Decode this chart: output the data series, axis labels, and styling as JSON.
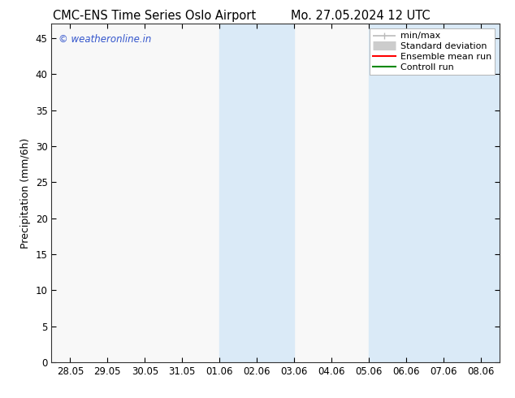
{
  "title_left": "CMC-ENS Time Series Oslo Airport",
  "title_right": "Mo. 27.05.2024 12 UTC",
  "ylabel": "Precipitation (mm/6h)",
  "ylim": [
    0,
    47
  ],
  "yticks": [
    0,
    5,
    10,
    15,
    20,
    25,
    30,
    35,
    40,
    45
  ],
  "xtick_labels": [
    "28.05",
    "29.05",
    "30.05",
    "31.05",
    "01.06",
    "02.06",
    "03.06",
    "04.06",
    "05.06",
    "06.06",
    "07.06",
    "08.06"
  ],
  "xtick_positions": [
    0,
    1,
    2,
    3,
    4,
    5,
    6,
    7,
    8,
    9,
    10,
    11
  ],
  "xlim": [
    -0.5,
    11.5
  ],
  "shaded_bands": [
    {
      "xmin": 4.0,
      "xmax": 6.0,
      "color": "#daeaf7"
    },
    {
      "xmin": 8.0,
      "xmax": 11.5,
      "color": "#daeaf7"
    }
  ],
  "legend_entries": [
    {
      "label": "min/max",
      "color": "#bbbbbb",
      "lw": 1.2,
      "type": "line_with_caps"
    },
    {
      "label": "Standard deviation",
      "color": "#cccccc",
      "lw": 8,
      "type": "thick_line"
    },
    {
      "label": "Ensemble mean run",
      "color": "#ff0000",
      "lw": 1.5,
      "type": "line"
    },
    {
      "label": "Controll run",
      "color": "#008800",
      "lw": 1.5,
      "type": "line"
    }
  ],
  "watermark": "© weatheronline.in",
  "watermark_color": "#3355cc",
  "bg_color": "#ffffff",
  "plot_bg_color": "#f8f8f8",
  "title_fontsize": 10.5,
  "ylabel_fontsize": 9,
  "tick_fontsize": 8.5,
  "legend_fontsize": 8
}
